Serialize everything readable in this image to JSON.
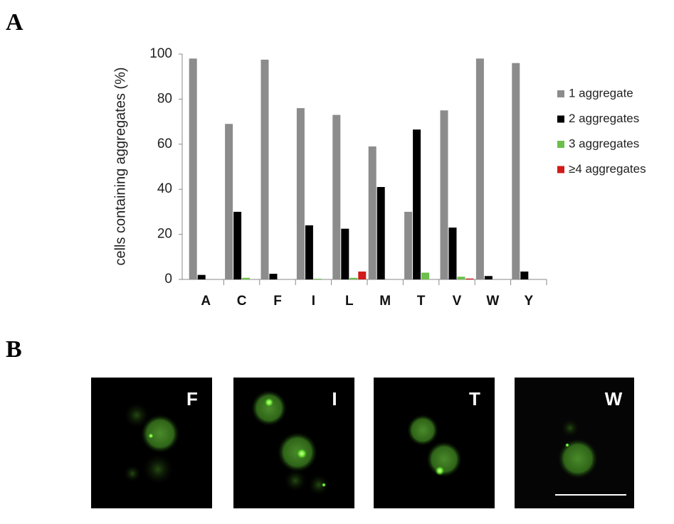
{
  "panel_labels": [
    "A",
    "B"
  ],
  "chart_data": {
    "type": "bar",
    "y_label": "cells containing aggregates (%)",
    "categories": [
      "A",
      "C",
      "F",
      "I",
      "L",
      "M",
      "T",
      "V",
      "W",
      "Y"
    ],
    "series": [
      {
        "name": "1 aggregate",
        "color": "#8c8c8c",
        "values": [
          98,
          69,
          97.5,
          76,
          73,
          59,
          30,
          75,
          98,
          96
        ]
      },
      {
        "name": "2 aggregates",
        "color": "#000000",
        "values": [
          2,
          30,
          2.5,
          24,
          22.5,
          41,
          66.5,
          23,
          1.5,
          3.5
        ]
      },
      {
        "name": "3 aggregates",
        "color": "#6cbf4a",
        "values": [
          0,
          0.7,
          0,
          0.3,
          0.7,
          0,
          3,
          1.2,
          0,
          0
        ]
      },
      {
        "name": "≥4 aggregates",
        "color": "#d11a1a",
        "values": [
          0,
          0,
          0,
          0,
          3.5,
          0,
          0,
          0.4,
          0,
          0
        ]
      }
    ],
    "ylim": [
      0,
      100
    ],
    "yticks": [
      0,
      20,
      40,
      60,
      80,
      100
    ],
    "legend": "right"
  },
  "panel_b": {
    "labels": [
      "F",
      "I",
      "T",
      "W"
    ]
  }
}
